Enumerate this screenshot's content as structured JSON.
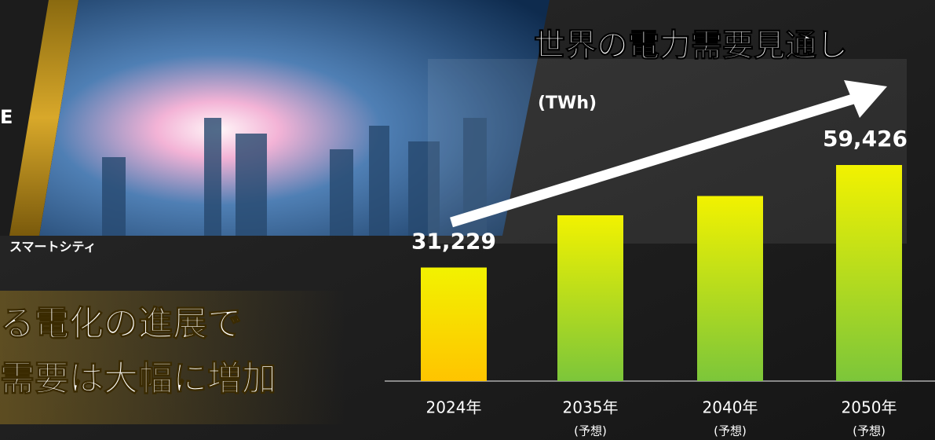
{
  "chart_data": {
    "type": "bar",
    "title": "世界の電力需要見通し",
    "unit_label": "(TWh)",
    "categories": [
      "2024年",
      "2035年",
      "2040年",
      "2050年"
    ],
    "category_notes": [
      null,
      "(予想)",
      "(予想)",
      "(予想)"
    ],
    "values": [
      31229,
      45600,
      50900,
      59426
    ],
    "value_labels": [
      "31,229",
      null,
      null,
      "59,426"
    ],
    "colors": [
      "#ffc400",
      "#7cc63a",
      "#7cc63a",
      "#7cc63a"
    ]
  },
  "annotations": {
    "corner_text": "E",
    "photo_caption": "スマートシティ",
    "headline": [
      "る電化の進展で",
      "需要は大幅に増加"
    ]
  }
}
